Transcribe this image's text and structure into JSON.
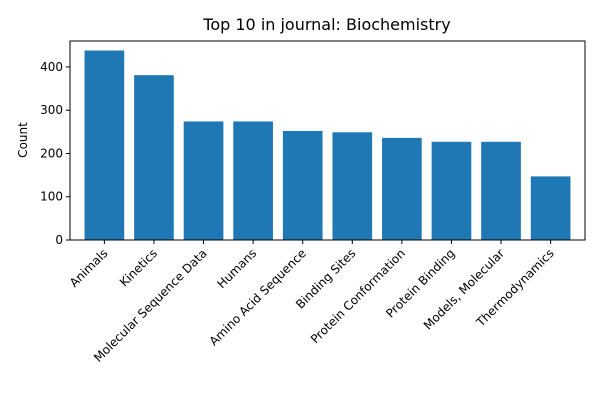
{
  "chart_data": {
    "type": "bar",
    "title": "Top 10 in journal: Biochemistry",
    "xlabel": "",
    "ylabel": "Count",
    "categories": [
      "Animals",
      "Kinetics",
      "Molecular Sequence Data",
      "Humans",
      "Amino Acid Sequence",
      "Binding Sites",
      "Protein Conformation",
      "Protein Binding",
      "Models, Molecular",
      "Thermodynamics"
    ],
    "values": [
      438,
      381,
      274,
      274,
      252,
      249,
      236,
      227,
      227,
      147
    ],
    "ylim": [
      0,
      460
    ],
    "yticks": [
      0,
      100,
      200,
      300,
      400
    ],
    "grid": false,
    "legend": "none",
    "bar_color": "#1f77b4"
  }
}
